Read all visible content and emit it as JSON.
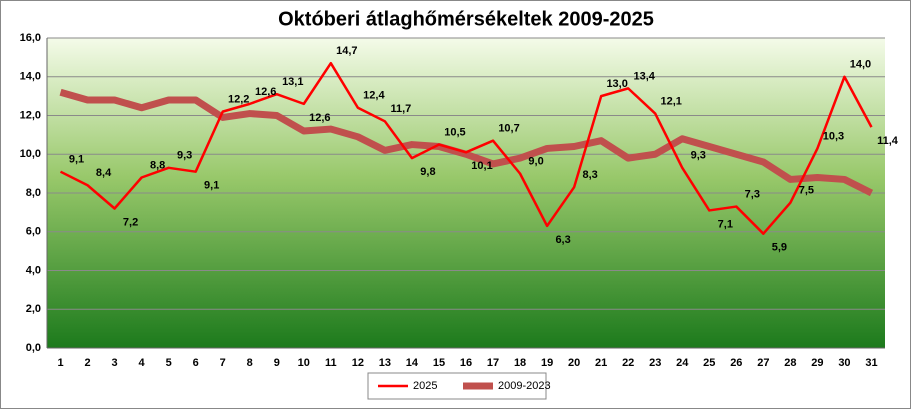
{
  "chart_data": {
    "type": "line",
    "title": "Októberi átlaghőmérsékeltek  2009-2025",
    "categories": [
      1,
      2,
      3,
      4,
      5,
      6,
      7,
      8,
      9,
      10,
      11,
      12,
      13,
      14,
      15,
      16,
      17,
      18,
      19,
      20,
      21,
      22,
      23,
      24,
      25,
      26,
      27,
      28,
      29,
      30,
      31
    ],
    "series": [
      {
        "name": "2025",
        "color": "#ff0000",
        "width": 2.5,
        "values": [
          9.1,
          8.4,
          7.2,
          8.8,
          9.3,
          9.1,
          12.2,
          12.6,
          13.1,
          12.6,
          14.7,
          12.4,
          11.7,
          9.8,
          10.5,
          10.1,
          10.7,
          9.0,
          6.3,
          8.3,
          13.0,
          13.4,
          12.1,
          9.3,
          7.1,
          7.3,
          5.9,
          7.5,
          10.3,
          14.0,
          11.4
        ],
        "value_labels": [
          "9,1",
          "8,4",
          "7,2",
          "8,8",
          "9,3",
          "9,1",
          "12,2",
          "12,6",
          "13,1",
          "12,6",
          "14,7",
          "12,4",
          "11,7",
          "9,8",
          "10,5",
          "10,1",
          "10,7",
          "9,0",
          "6,3",
          "8,3",
          "13,0",
          "13,4",
          "12,1",
          "9,3",
          "7,1",
          "7,3",
          "5,9",
          "7,5",
          "10,3",
          "14,0",
          "11,4"
        ]
      },
      {
        "name": "2009-2023",
        "color": "#c0504d",
        "width": 7,
        "values": [
          13.2,
          12.8,
          12.8,
          12.4,
          12.8,
          12.8,
          11.9,
          12.1,
          12.0,
          11.2,
          11.3,
          10.9,
          10.2,
          10.5,
          10.4,
          10.0,
          9.5,
          9.8,
          10.3,
          10.4,
          10.7,
          9.8,
          10.0,
          10.8,
          10.4,
          10.0,
          9.6,
          8.7,
          8.8,
          8.7,
          8.0
        ]
      }
    ],
    "ylim": [
      0,
      16
    ],
    "yticks": [
      {
        "value": 0,
        "label": "0,0"
      },
      {
        "value": 2,
        "label": "2,0"
      },
      {
        "value": 4,
        "label": "4,0"
      },
      {
        "value": 6,
        "label": "6,0"
      },
      {
        "value": 8,
        "label": "8,0"
      },
      {
        "value": 10,
        "label": "10,0"
      },
      {
        "value": 12,
        "label": "12,0"
      },
      {
        "value": 14,
        "label": "14,0"
      },
      {
        "value": 16,
        "label": "16,0"
      }
    ],
    "grid": true,
    "legend": "bottom"
  }
}
